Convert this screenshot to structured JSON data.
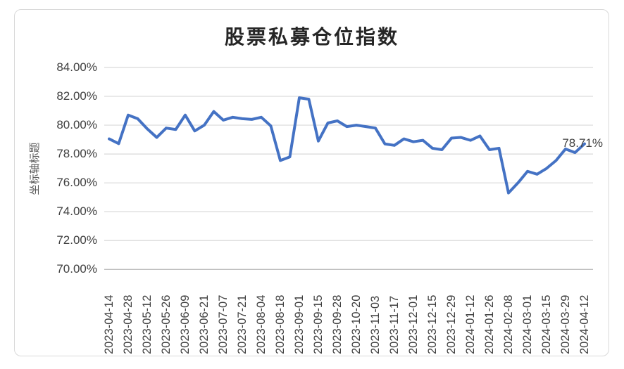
{
  "chart_data": {
    "type": "line",
    "title": "股票私募仓位指数",
    "y_axis_title": "坐标轴标题",
    "legend": "none",
    "grid": "horizontal",
    "ylim": [
      70,
      84
    ],
    "y_tick_step": 2,
    "y_tick_labels": [
      "84.00%",
      "82.00%",
      "80.00%",
      "78.00%",
      "76.00%",
      "74.00%",
      "72.00%",
      "70.00%"
    ],
    "x_tick_labels": [
      "2023-04-14",
      "2023-04-28",
      "2023-05-12",
      "2023-05-26",
      "2023-06-09",
      "2023-06-21",
      "2023-07-07",
      "2023-07-21",
      "2023-08-04",
      "2023-08-18",
      "2023-09-01",
      "2023-09-15",
      "2023-09-28",
      "2023-10-20",
      "2023-11-03",
      "2023-11-17",
      "2023-12-01",
      "2023-12-15",
      "2023-12-29",
      "2024-01-12",
      "2024-01-26",
      "2024-02-08",
      "2024-03-01",
      "2024-03-15",
      "2024-03-29",
      "2024-04-12"
    ],
    "label_every_n_points": 2,
    "values": [
      79.05,
      78.72,
      80.7,
      80.45,
      79.75,
      79.15,
      79.8,
      79.7,
      80.7,
      79.6,
      80.0,
      80.95,
      80.35,
      80.55,
      80.45,
      80.4,
      80.55,
      79.95,
      77.55,
      77.8,
      81.9,
      81.8,
      78.9,
      80.15,
      80.3,
      79.9,
      80.0,
      79.9,
      79.8,
      78.7,
      78.6,
      79.05,
      78.85,
      78.95,
      78.4,
      78.3,
      79.1,
      79.15,
      78.95,
      79.25,
      78.3,
      78.4,
      75.3,
      76.0,
      76.8,
      76.6,
      77.0,
      77.55,
      78.35,
      78.1,
      78.71
    ],
    "end_label": "78.71%",
    "colors": {
      "line": "#4472C4",
      "gridline": "#D9D9D9",
      "axis_line": "#BFBFBF",
      "tick_text": "#404040",
      "title_text": "#262626",
      "axis_title_text": "#595959",
      "border": "#D9D9D9"
    }
  }
}
